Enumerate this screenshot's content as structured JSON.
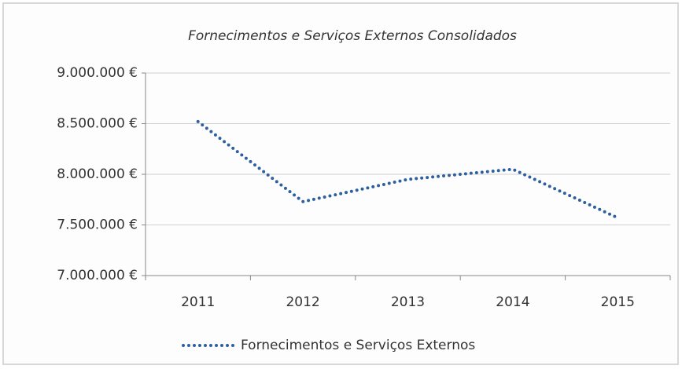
{
  "chart_data": {
    "type": "line",
    "title": "Fornecimentos e Serviços Externos Consolidados",
    "categories": [
      "2011",
      "2012",
      "2013",
      "2014",
      "2015"
    ],
    "series": [
      {
        "name": "Fornecimentos e Serviços Externos",
        "color": "#2e5f9e",
        "values": [
          8520000,
          7730000,
          7950000,
          8050000,
          7570000
        ]
      }
    ],
    "ylim": [
      7000000,
      9000000
    ],
    "yticks": [
      {
        "value": 7000000,
        "label": "7.000.000 €"
      },
      {
        "value": 7500000,
        "label": "7.500.000 €"
      },
      {
        "value": 8000000,
        "label": "8.000.000 €"
      },
      {
        "value": 8500000,
        "label": "8.500.000 €"
      },
      {
        "value": 9000000,
        "label": "9.000.000 €"
      }
    ],
    "grid": true,
    "legend": "bottom"
  }
}
